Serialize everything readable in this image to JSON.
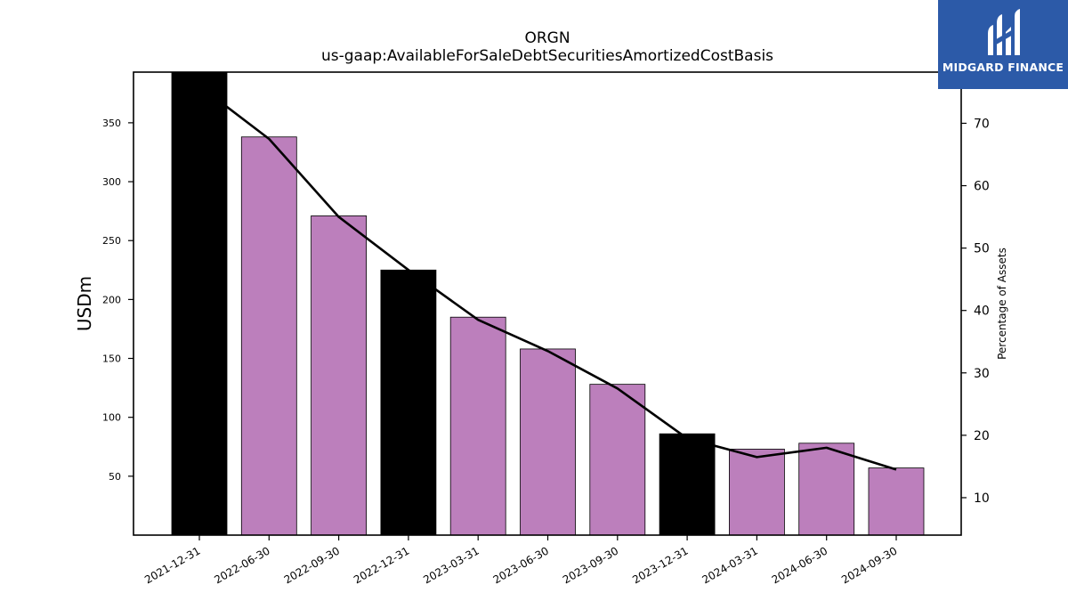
{
  "chart_data": {
    "type": "bar",
    "title": "ORGN",
    "subtitle": "us-gaap:AvailableForSaleDebtSecuritiesAmortizedCostBasis",
    "ylabel": "USDm",
    "y2label": "Percentage of Assets",
    "categories": [
      "2021-12-31",
      "2022-06-30",
      "2022-09-30",
      "2022-12-31",
      "2023-03-31",
      "2023-06-30",
      "2023-09-30",
      "2023-12-31",
      "2024-03-31",
      "2024-06-30",
      "2024-09-30"
    ],
    "values": [
      393,
      338,
      271,
      225,
      185,
      158,
      128,
      86,
      73,
      78,
      57
    ],
    "highlight": [
      true,
      false,
      false,
      true,
      false,
      false,
      false,
      true,
      false,
      false,
      false
    ],
    "bar_color": "#bc7fbc",
    "highlight_color": "#000000",
    "ylim": [
      0,
      393
    ],
    "yticks": [
      50,
      100,
      150,
      200,
      250,
      300,
      350
    ],
    "line_series": {
      "name": "Percentage of Assets",
      "values": [
        76,
        67.5,
        55,
        46.5,
        38.5,
        33.5,
        27.5,
        19.5,
        16.5,
        18,
        14.5
      ],
      "color": "#000000"
    },
    "y2lim": [
      4,
      78.2
    ],
    "y2ticks": [
      10,
      20,
      30,
      40,
      50,
      60,
      70
    ],
    "grid": false
  },
  "logo": {
    "text": "MIDGARD FINANCE",
    "color": "#2c5aa8"
  }
}
